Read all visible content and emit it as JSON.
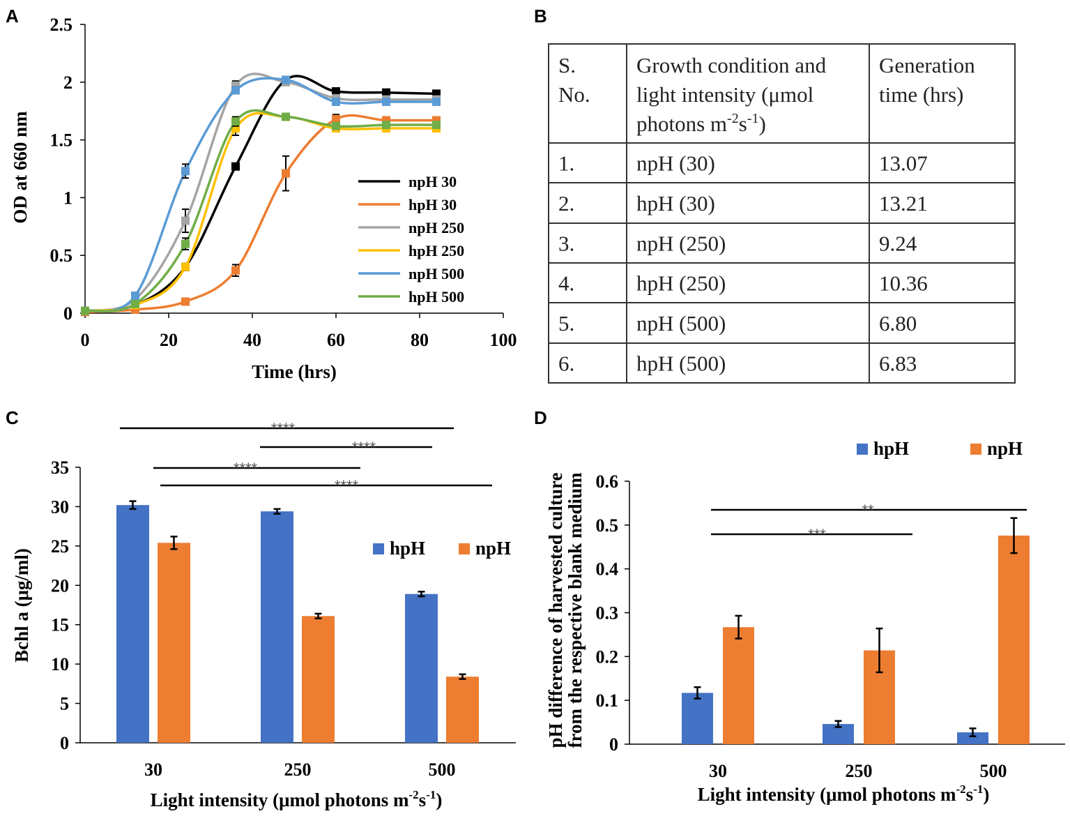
{
  "panels": {
    "a": "A",
    "b": "B",
    "c": "C",
    "d": "D"
  },
  "chart_data": [
    {
      "type": "line",
      "panel": "A",
      "xlabel": "Time  (hrs)",
      "ylabel": "OD at 660 nm",
      "xlim": [
        0,
        100
      ],
      "ylim": [
        0,
        2.5
      ],
      "xticks": [
        0,
        20,
        40,
        60,
        80,
        100
      ],
      "yticks": [
        0,
        0.5,
        1,
        1.5,
        2,
        2.5
      ],
      "ytick_labels": [
        "0",
        "0.5",
        "1",
        "1.5",
        "2",
        "2.5"
      ],
      "x": [
        0,
        12,
        24,
        36,
        48,
        60,
        72,
        84
      ],
      "series": [
        {
          "name": "npH  30",
          "color": "#000000",
          "values": [
            0.02,
            0.07,
            0.4,
            1.27,
            2.02,
            1.92,
            1.91,
            1.9
          ],
          "errors": [
            0,
            0,
            0.02,
            0.02,
            0.03,
            0.02,
            0.02,
            0.02
          ]
        },
        {
          "name": "hpH  30",
          "color": "#ED7D31",
          "values": [
            0.01,
            0.03,
            0.1,
            0.37,
            1.21,
            1.68,
            1.67,
            1.67
          ],
          "errors": [
            0,
            0,
            0.01,
            0.05,
            0.15,
            0.04,
            0.02,
            0.02
          ]
        },
        {
          "name": "npH  250",
          "color": "#A5A5A5",
          "values": [
            0.02,
            0.12,
            0.8,
            1.97,
            2.0,
            1.86,
            1.85,
            1.85
          ],
          "errors": [
            0,
            0.02,
            0.1,
            0.04,
            0.02,
            0.02,
            0.02,
            0.02
          ]
        },
        {
          "name": "hpH  250",
          "color": "#FFC000",
          "values": [
            0.02,
            0.07,
            0.4,
            1.6,
            1.7,
            1.6,
            1.6,
            1.6
          ],
          "errors": [
            0,
            0,
            0.03,
            0.06,
            0.02,
            0.02,
            0.02,
            0.02
          ]
        },
        {
          "name": "npH  500",
          "color": "#5B9BD5",
          "values": [
            0.02,
            0.15,
            1.23,
            1.93,
            2.02,
            1.83,
            1.83,
            1.83
          ],
          "errors": [
            0,
            0.03,
            0.06,
            0.03,
            0.03,
            0.02,
            0.02,
            0.02
          ]
        },
        {
          "name": "hpH  500",
          "color": "#70AD47",
          "values": [
            0.02,
            0.08,
            0.6,
            1.66,
            1.7,
            1.62,
            1.63,
            1.63
          ],
          "errors": [
            0,
            0,
            0.05,
            0.04,
            0.02,
            0.02,
            0.02,
            0.02
          ]
        }
      ]
    },
    {
      "type": "bar",
      "panel": "C",
      "xlabel": "Light intensity (μmol photons m",
      "xlabel_sup1": "-2",
      "xlabel_mid": "s",
      "xlabel_sup2": "-1",
      "xlabel_end": ")",
      "ylabel": "Bchl a (μg/ml)",
      "ylim": [
        0,
        35
      ],
      "yticks": [
        0,
        5,
        10,
        15,
        20,
        25,
        30,
        35
      ],
      "categories": [
        "30",
        "250",
        "500"
      ],
      "series": [
        {
          "name": "hpH",
          "color": "#4472C4",
          "values": [
            30.2,
            29.4,
            18.9
          ],
          "errors": [
            0.5,
            0.3,
            0.3
          ]
        },
        {
          "name": "npH",
          "color": "#ED7D31",
          "values": [
            25.4,
            16.1,
            8.4
          ],
          "errors": [
            0.8,
            0.3,
            0.3
          ]
        }
      ],
      "significance": [
        "****",
        "****",
        "****",
        "****"
      ]
    },
    {
      "type": "bar",
      "panel": "D",
      "xlabel": "Light intensity (μmol photons m",
      "xlabel_sup1": "-2",
      "xlabel_mid": "s",
      "xlabel_sup2": "-1",
      "xlabel_end": ")",
      "ylabel_line1": "pH difference of harvested culture",
      "ylabel_line2": "from the respective blank medium",
      "ylim": [
        0,
        0.6
      ],
      "yticks": [
        0,
        0.1,
        0.2,
        0.3,
        0.4,
        0.5,
        0.6
      ],
      "ytick_labels": [
        "0",
        "0.1",
        "0.2",
        "0.3",
        "0.4",
        "0.5",
        "0.6"
      ],
      "categories": [
        "30",
        "250",
        "500"
      ],
      "series": [
        {
          "name": "hpH",
          "color": "#4472C4",
          "values": [
            0.117,
            0.046,
            0.027
          ],
          "errors": [
            0.013,
            0.007,
            0.009
          ]
        },
        {
          "name": "npH",
          "color": "#ED7D31",
          "values": [
            0.267,
            0.214,
            0.476
          ],
          "errors": [
            0.026,
            0.05,
            0.04
          ]
        }
      ],
      "significance": [
        "**",
        "***"
      ]
    },
    {
      "type": "table",
      "panel": "B",
      "headers": [
        {
          "lines": [
            "S.",
            "No."
          ]
        },
        {
          "lines": [
            "Growth condition and",
            "light intensity (μmol",
            "photons m"
          ],
          "sup1": "-2",
          "mid": "s",
          "sup2": "-1",
          "end": ")"
        },
        {
          "lines": [
            "Generation",
            "time (hrs)"
          ]
        }
      ],
      "rows": [
        [
          "1.",
          "npH (30)",
          "13.07"
        ],
        [
          "2.",
          "hpH (30)",
          "13.21"
        ],
        [
          "3.",
          "npH (250)",
          "9.24"
        ],
        [
          "4.",
          "hpH (250)",
          "10.36"
        ],
        [
          "5.",
          "npH (500)",
          "6.80"
        ],
        [
          "6.",
          "hpH (500)",
          "6.83"
        ]
      ]
    }
  ]
}
